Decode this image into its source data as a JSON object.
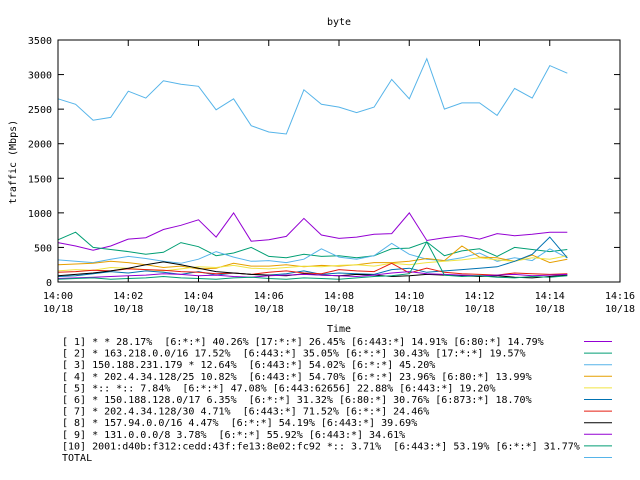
{
  "chart_data": {
    "type": "line",
    "title": "byte",
    "xlabel": "Time",
    "ylabel": "traffic (Mbps)",
    "ylim": [
      0,
      3500
    ],
    "xlim": [
      "2014-10-18 14:00",
      "2014-10-18 14:16"
    ],
    "yticks": [
      "0",
      "500",
      "1000",
      "1500",
      "2000",
      "2500",
      "3000",
      "3500"
    ],
    "xticks": [
      {
        "time": "14:00",
        "date": "10/18"
      },
      {
        "time": "14:02",
        "date": "10/18"
      },
      {
        "time": "14:04",
        "date": "10/18"
      },
      {
        "time": "14:06",
        "date": "10/18"
      },
      {
        "time": "14:08",
        "date": "10/18"
      },
      {
        "time": "14:10",
        "date": "10/18"
      },
      {
        "time": "14:12",
        "date": "10/18"
      },
      {
        "time": "14:14",
        "date": "10/18"
      },
      {
        "time": "14:16",
        "date": "10/18"
      }
    ],
    "x_minutes": [
      0,
      0.5,
      1,
      1.5,
      2,
      2.5,
      3,
      3.5,
      4,
      4.5,
      5,
      5.5,
      6,
      6.5,
      7,
      7.5,
      8,
      8.5,
      9,
      9.5,
      10,
      10.5,
      11,
      11.5,
      12,
      12.5,
      13,
      13.5,
      14,
      14.5
    ],
    "grid": false,
    "legend_position": "bottom",
    "series": [
      {
        "name": "[ 1] * * 28.17%  [6:*:*] 40.26% [17:*:*] 26.45% [6:443:*] 14.91% [6:80:*] 14.79%",
        "color": "#9400d3",
        "values": [
          570,
          520,
          460,
          520,
          620,
          640,
          760,
          820,
          900,
          650,
          1000,
          590,
          610,
          660,
          920,
          680,
          630,
          650,
          690,
          700,
          1000,
          600,
          640,
          670,
          620,
          700,
          670,
          690,
          720,
          720
        ]
      },
      {
        "name": "[ 2] * 163.218.0.0/16 17.52%  [6:443:*] 35.05% [6:*:*] 30.43% [17:*:*] 19.57%",
        "color": "#009e73",
        "values": [
          610,
          720,
          500,
          470,
          440,
          400,
          430,
          570,
          510,
          380,
          420,
          500,
          370,
          350,
          400,
          370,
          380,
          350,
          380,
          480,
          490,
          580,
          380,
          450,
          480,
          370,
          500,
          470,
          440,
          470
        ]
      },
      {
        "name": "[ 3] 150.188.231.179 * 12.64%  [6:443:*] 54.02% [6:*:*] 45.20%",
        "color": "#56b4e9",
        "values": [
          320,
          300,
          280,
          330,
          370,
          340,
          300,
          270,
          330,
          440,
          360,
          300,
          310,
          280,
          330,
          480,
          360,
          330,
          380,
          560,
          400,
          330,
          310,
          350,
          420,
          300,
          350,
          310,
          480,
          350
        ]
      },
      {
        "name": "[ 4] * 202.4.34.128/25 10.82%  [6:443:*] 54.70% [6:*:*] 23.96% [6:80:*] 13.99%",
        "color": "#e69f00",
        "values": [
          250,
          260,
          270,
          300,
          280,
          250,
          210,
          230,
          190,
          200,
          270,
          230,
          230,
          250,
          220,
          240,
          230,
          250,
          280,
          280,
          300,
          340,
          310,
          520,
          360,
          350,
          300,
          390,
          280,
          330
        ]
      },
      {
        "name": "[ 5] *:: *:: 7.84%  [6:*:*] 47.08% [6:443:62656] 22.88% [6:443:*] 19.20%",
        "color": "#f0e442",
        "values": [
          160,
          180,
          170,
          210,
          200,
          180,
          160,
          190,
          220,
          210,
          240,
          200,
          190,
          210,
          230,
          220,
          240,
          250,
          230,
          270,
          250,
          280,
          300,
          320,
          350,
          320,
          300,
          350,
          330,
          380
        ]
      },
      {
        "name": "[ 6] * 150.188.128.0/17 6.35%  [6:*:*] 31.32% [6:80:*] 30.76% [6:873:*] 18.70%",
        "color": "#0072b2",
        "values": [
          80,
          90,
          120,
          150,
          130,
          160,
          140,
          110,
          150,
          100,
          130,
          110,
          100,
          120,
          160,
          110,
          130,
          120,
          110,
          180,
          200,
          140,
          160,
          180,
          200,
          220,
          300,
          400,
          650,
          350
        ]
      },
      {
        "name": "[ 7] * 202.4.34.128/30 4.71%  [6:443:*] 71.52% [6:*:*] 24.46%",
        "color": "#e51e10",
        "values": [
          140,
          150,
          170,
          160,
          190,
          180,
          170,
          150,
          140,
          120,
          130,
          110,
          140,
          160,
          130,
          120,
          180,
          160,
          150,
          270,
          130,
          200,
          140,
          120,
          110,
          100,
          130,
          120,
          110,
          120
        ]
      },
      {
        "name": "[ 8] * 157.94.0.0/16 4.47%  [6:*:*] 54.19% [6:443:*] 39.69%",
        "color": "#000000",
        "values": [
          90,
          110,
          130,
          160,
          200,
          250,
          290,
          250,
          200,
          150,
          130,
          110,
          100,
          90,
          120,
          100,
          90,
          110,
          100,
          80,
          90,
          110,
          100,
          90,
          80,
          90,
          70,
          60,
          80,
          100
        ]
      },
      {
        "name": "[ 9] * 131.0.0.0/8 3.78%  [6:*:*] 55.92% [6:443:*] 34.61%",
        "color": "#9400d3",
        "values": [
          50,
          60,
          70,
          80,
          90,
          100,
          120,
          110,
          90,
          100,
          80,
          70,
          90,
          100,
          110,
          100,
          90,
          80,
          100,
          130,
          150,
          120,
          110,
          100,
          90,
          100,
          110,
          90,
          100,
          110
        ]
      },
      {
        "name": "[10] 2001:d40b:f312:cedd:43f:fe13:8e02:fc92 *:: 3.71%  [6:443:*] 53.19% [6:*:*] 31.77%",
        "color": "#009e73",
        "values": [
          40,
          50,
          60,
          40,
          50,
          60,
          80,
          60,
          50,
          40,
          60,
          70,
          50,
          40,
          60,
          50,
          40,
          60,
          80,
          90,
          120,
          580,
          100,
          80,
          90,
          70,
          60,
          80,
          70,
          90
        ]
      },
      {
        "name": "TOTAL",
        "color": "#56b4e9",
        "values": [
          2650,
          2570,
          2340,
          2380,
          2760,
          2660,
          2910,
          2860,
          2830,
          2490,
          2650,
          2260,
          2170,
          2140,
          2780,
          2570,
          2530,
          2450,
          2530,
          2930,
          2650,
          3230,
          2500,
          2590,
          2590,
          2410,
          2800,
          2660,
          3130,
          3020
        ]
      }
    ]
  }
}
